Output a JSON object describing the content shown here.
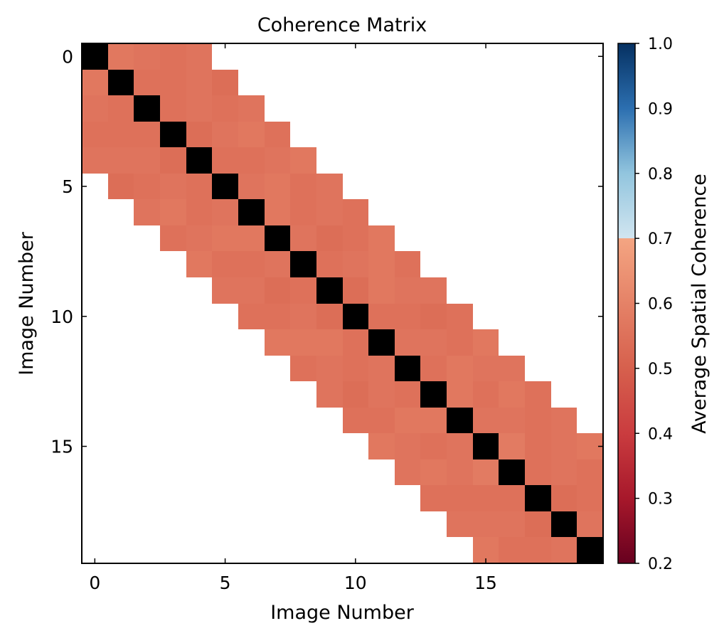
{
  "chart_data": {
    "type": "heatmap",
    "title": "Coherence Matrix",
    "xlabel": "Image Number",
    "ylabel": "Image Number",
    "n_images": 20,
    "band_half_width": 4,
    "diagonal_color": "#000000",
    "masked_color": "#ffffff",
    "colormap": "RdBu",
    "colorbar": {
      "label": "Average Spatial Coherence",
      "range": [
        0.2,
        1.0
      ],
      "ticks": [
        "0.2",
        "0.3",
        "0.4",
        "0.5",
        "0.6",
        "0.7",
        "0.8",
        "0.9",
        "1.0"
      ],
      "stops": [
        {
          "v": 0.2,
          "color": "#67001f"
        },
        {
          "v": 0.3,
          "color": "#a7182b"
        },
        {
          "v": 0.4,
          "color": "#ca3c3f"
        },
        {
          "v": 0.5,
          "color": "#d6604d"
        },
        {
          "v": 0.6,
          "color": "#e58267"
        },
        {
          "v": 0.7,
          "color": "#f4a582"
        },
        {
          "v": 0.7001,
          "color": "#d1e5f0"
        },
        {
          "v": 0.8,
          "color": "#92c5de"
        },
        {
          "v": 0.9,
          "color": "#2c6fb0"
        },
        {
          "v": 1.0,
          "color": "#053061"
        }
      ]
    },
    "x_ticks": [
      "0",
      "5",
      "10",
      "15"
    ],
    "y_ticks": [
      "0",
      "5",
      "10",
      "15"
    ],
    "tick_values": [
      0,
      5,
      10,
      15
    ],
    "offdiag_values_by_offset": {
      "1": [
        0.57,
        0.55,
        0.55,
        0.54,
        0.55,
        0.56,
        0.57,
        0.56,
        0.55,
        0.54,
        0.55,
        0.56,
        0.55,
        0.57,
        0.56,
        0.58,
        0.55,
        0.54,
        0.56
      ],
      "2": [
        0.56,
        0.55,
        0.56,
        0.56,
        0.55,
        0.57,
        0.55,
        0.54,
        0.56,
        0.57,
        0.55,
        0.56,
        0.57,
        0.55,
        0.56,
        0.55,
        0.56,
        0.55
      ],
      "3": [
        0.55,
        0.56,
        0.55,
        0.57,
        0.56,
        0.55,
        0.56,
        0.55,
        0.57,
        0.56,
        0.54,
        0.55,
        0.56,
        0.57,
        0.55,
        0.56,
        0.55
      ],
      "4": [
        0.56,
        0.54,
        0.56,
        0.55,
        0.57,
        0.56,
        0.55,
        0.57,
        0.55,
        0.56,
        0.55,
        0.57,
        0.56,
        0.55,
        0.56,
        0.57
      ]
    }
  }
}
